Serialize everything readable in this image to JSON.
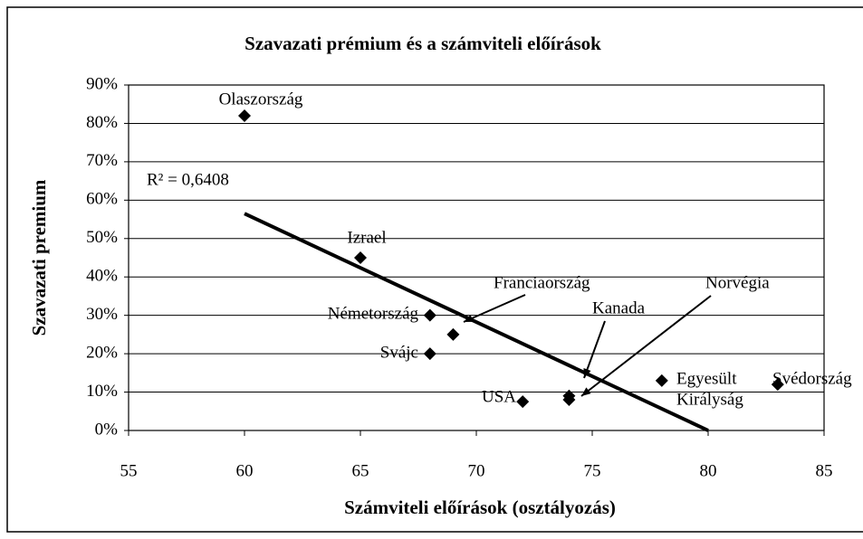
{
  "chart_data": {
    "type": "scatter",
    "title": "Szavazati prémium és a számviteli előírások",
    "x_label": "Számviteli előírások (osztályozás)",
    "y_label": "Szavazati premium",
    "series": [
      {
        "color": "#000000",
        "labels": [
          [
            "Olaszország"
          ],
          [
            "Izrael"
          ],
          [
            "Németország"
          ],
          [
            "Svájc"
          ],
          [
            "Franciaország"
          ],
          [
            "USA"
          ],
          [
            "Kanada"
          ],
          [
            "Norvégia"
          ],
          [
            "Egyesült",
            "Királyság"
          ],
          [
            "Svédország"
          ]
        ],
        "x": [
          60,
          65,
          68,
          68,
          69,
          72,
          74,
          74,
          78,
          83
        ],
        "values": [
          82,
          45,
          30,
          20,
          25,
          7.5,
          9,
          8,
          13,
          12
        ]
      }
    ],
    "trendline": {
      "x": [
        60,
        80
      ],
      "values": [
        56.5,
        0
      ],
      "annotation": "R² = 0,6408"
    },
    "xlim": [
      55,
      85
    ],
    "xticks": [
      55,
      60,
      65,
      70,
      75,
      80,
      85
    ],
    "ylim": [
      0,
      90
    ],
    "yticks": [
      {
        "value": 0,
        "label": "0%"
      },
      {
        "value": 10,
        "label": "10%"
      },
      {
        "value": 20,
        "label": "20%"
      },
      {
        "value": 30,
        "label": "30%"
      },
      {
        "value": 40,
        "label": "40%"
      },
      {
        "value": 50,
        "label": "50%"
      },
      {
        "value": 60,
        "label": "60%"
      },
      {
        "value": 70,
        "label": "70%"
      },
      {
        "value": 80,
        "label": "80%"
      },
      {
        "value": 90,
        "label": "90%"
      }
    ],
    "grid": true
  }
}
